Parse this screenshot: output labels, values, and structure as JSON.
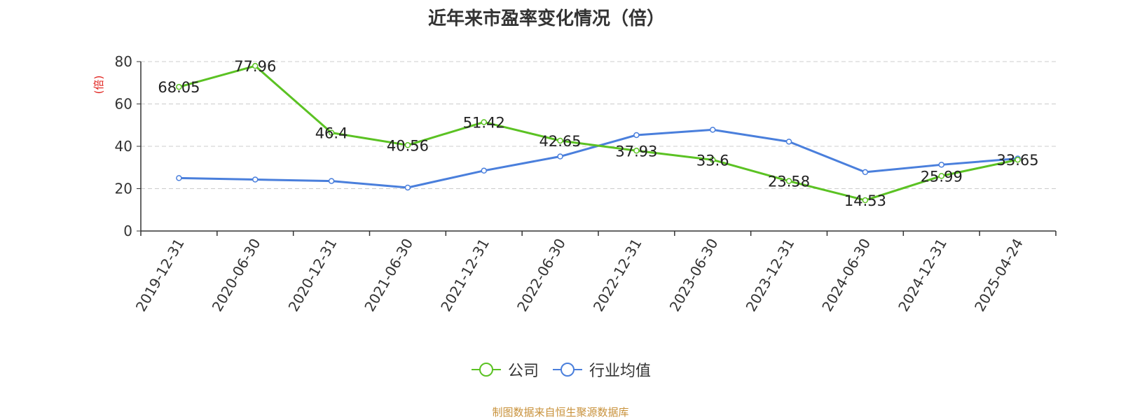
{
  "title": "近年来市盈率变化情况（倍）",
  "source": "制图数据来自恒生聚源数据库",
  "colors": {
    "company": "#5bc223",
    "industry": "#4a7fdc",
    "unit": "#e0201b"
  },
  "chart_data": {
    "type": "line",
    "title": "近年来市盈率变化情况（倍）",
    "ylabel": "(倍)",
    "xlabel": "",
    "ylim": [
      0,
      80
    ],
    "yticks": [
      0,
      20,
      40,
      60,
      80
    ],
    "grid": true,
    "legend_position": "bottom",
    "categories": [
      "2019-12-31",
      "2020-06-30",
      "2020-12-31",
      "2021-06-30",
      "2021-12-31",
      "2022-06-30",
      "2022-12-31",
      "2023-06-30",
      "2023-12-31",
      "2024-06-30",
      "2024-12-31",
      "2025-04-24"
    ],
    "series": [
      {
        "name": "公司",
        "values": [
          68.05,
          77.96,
          46.4,
          40.56,
          51.42,
          42.65,
          37.93,
          33.6,
          23.58,
          14.53,
          25.99,
          33.65
        ],
        "labels": [
          "68.05",
          "77.96",
          "46.4",
          "40.56",
          "51.42",
          "42.65",
          "37.93",
          "33.6",
          "23.58",
          "14.53",
          "25.99",
          "33.65"
        ]
      },
      {
        "name": "行业均值",
        "values": [
          25.0,
          24.3,
          23.6,
          20.5,
          28.5,
          35.2,
          45.3,
          47.8,
          42.2,
          27.8,
          31.3,
          34.2
        ]
      }
    ]
  }
}
